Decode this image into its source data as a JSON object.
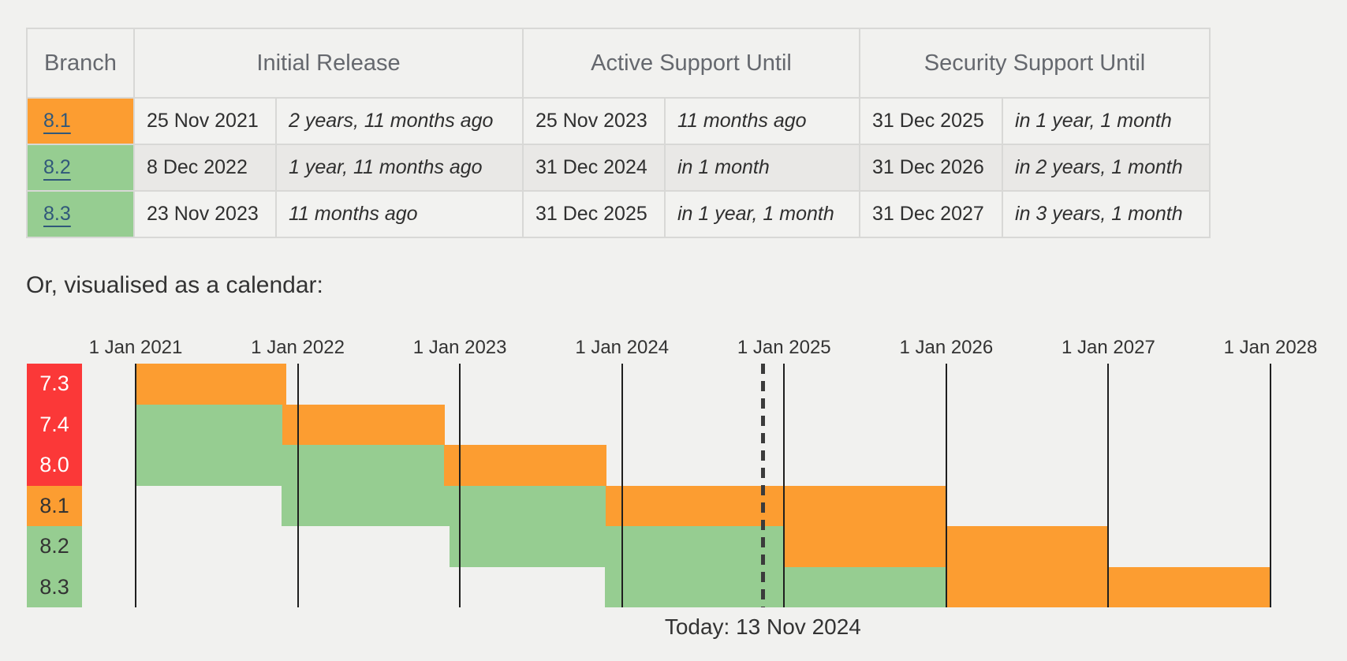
{
  "table": {
    "headers": [
      "Branch",
      "Initial Release",
      "Active Support Until",
      "Security Support Until"
    ],
    "rows": [
      {
        "branch": "8.1",
        "branch_state": "security",
        "initial_release": "25 Nov 2021",
        "initial_release_relative": "2 years, 11 months ago",
        "active_until": "25 Nov 2023",
        "active_until_relative": "11 months ago",
        "security_until": "31 Dec 2025",
        "security_until_relative": "in 1 year, 1 month"
      },
      {
        "branch": "8.2",
        "branch_state": "active",
        "initial_release": "8 Dec 2022",
        "initial_release_relative": "1 year, 11 months ago",
        "active_until": "31 Dec 2024",
        "active_until_relative": "in 1 month",
        "security_until": "31 Dec 2026",
        "security_until_relative": "in 2 years, 1 month"
      },
      {
        "branch": "8.3",
        "branch_state": "active",
        "initial_release": "23 Nov 2023",
        "initial_release_relative": "11 months ago",
        "active_until": "31 Dec 2025",
        "active_until_relative": "in 1 year, 1 month",
        "security_until": "31 Dec 2027",
        "security_until_relative": "in 3 years, 1 month"
      }
    ]
  },
  "calendar_caption": "Or, visualised as a calendar:",
  "chart_data": {
    "type": "gantt",
    "x_axis": {
      "tick_labels": [
        "1 Jan 2021",
        "1 Jan 2022",
        "1 Jan 2023",
        "1 Jan 2024",
        "1 Jan 2025",
        "1 Jan 2026",
        "1 Jan 2027",
        "1 Jan 2028"
      ],
      "start": 2021,
      "end": 2028,
      "grid": true
    },
    "today": {
      "label": "Today: 13 Nov 2024",
      "position": 2024.869
    },
    "states": {
      "active": {
        "color": "#96cd91"
      },
      "security": {
        "color": "#fc9d31"
      },
      "eol": {
        "color": "#fb3838"
      }
    },
    "rows": [
      {
        "branch": "7.3",
        "label_state": "eol",
        "segments": [
          {
            "state": "security",
            "from": 2021.0,
            "to": 2021.929
          }
        ]
      },
      {
        "branch": "7.4",
        "label_state": "eol",
        "segments": [
          {
            "state": "active",
            "from": 2021.0,
            "to": 2021.907
          },
          {
            "state": "security",
            "from": 2021.907,
            "to": 2022.907
          }
        ]
      },
      {
        "branch": "8.0",
        "label_state": "eol",
        "segments": [
          {
            "state": "active",
            "from": 2021.0,
            "to": 2022.904
          },
          {
            "state": "security",
            "from": 2022.904,
            "to": 2023.904
          }
        ]
      },
      {
        "branch": "8.1",
        "label_state": "security",
        "segments": [
          {
            "state": "active",
            "from": 2021.899,
            "to": 2023.899
          },
          {
            "state": "security",
            "from": 2023.899,
            "to": 2026.0
          }
        ]
      },
      {
        "branch": "8.2",
        "label_state": "active",
        "segments": [
          {
            "state": "active",
            "from": 2022.934,
            "to": 2025.0
          },
          {
            "state": "security",
            "from": 2025.0,
            "to": 2027.0
          }
        ]
      },
      {
        "branch": "8.3",
        "label_state": "active",
        "segments": [
          {
            "state": "active",
            "from": 2023.893,
            "to": 2026.0
          },
          {
            "state": "security",
            "from": 2026.0,
            "to": 2028.0
          }
        ]
      }
    ]
  },
  "colors": {
    "page_background": "#f1f1ef",
    "table_border": "#d8d8d6",
    "alt_row_background": "#e9e8e6",
    "link": "#31587a",
    "gridline": "#1f1f1f",
    "today_line": "#3b3b3b"
  }
}
